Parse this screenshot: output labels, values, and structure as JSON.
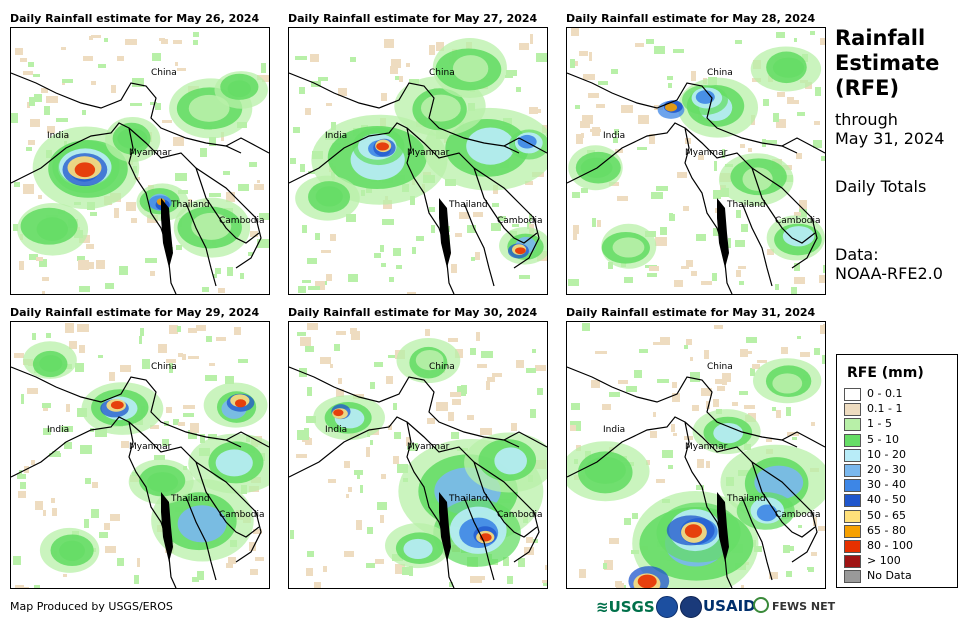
{
  "panels": [
    {
      "title": "Daily Rainfall estimate for May 26, 2024"
    },
    {
      "title": "Daily Rainfall estimate for May 27, 2024"
    },
    {
      "title": "Daily Rainfall estimate for May 28, 2024"
    },
    {
      "title": "Daily Rainfall estimate for May 29, 2024"
    },
    {
      "title": "Daily Rainfall estimate for May 30, 2024"
    },
    {
      "title": "Daily Rainfall estimate for May 31, 2024"
    }
  ],
  "map_labels": {
    "china": "China",
    "india": "India",
    "myanmar": "Myanmar",
    "thailand": "Thailand",
    "cambodia": "Cambodia"
  },
  "side": {
    "title_line1": "Rainfall",
    "title_line2": "Estimate",
    "title_line3": "(RFE)",
    "through": "through",
    "date": "May 31, 2024",
    "totals": "Daily Totals",
    "data_label": "Data:",
    "data_source": "NOAA-RFE2.0"
  },
  "legend": {
    "title": "RFE (mm)",
    "items": [
      {
        "label": "0 - 0.1",
        "color": "#ffffff"
      },
      {
        "label": "0.1 - 1",
        "color": "#eedcc0"
      },
      {
        "label": "1 - 5",
        "color": "#b8f0a8"
      },
      {
        "label": "5 - 10",
        "color": "#66dd66"
      },
      {
        "label": "10 - 20",
        "color": "#b8ecf8"
      },
      {
        "label": "20 - 30",
        "color": "#7ab8ee"
      },
      {
        "label": "30 - 40",
        "color": "#3d86e6"
      },
      {
        "label": "40 - 50",
        "color": "#1f56cc"
      },
      {
        "label": "50 - 65",
        "color": "#ffe07a"
      },
      {
        "label": "65 - 80",
        "color": "#f6a000"
      },
      {
        "label": "80 - 100",
        "color": "#e63000"
      },
      {
        "label": "> 100",
        "color": "#a01414"
      },
      {
        "label": "No Data",
        "color": "#999999"
      }
    ]
  },
  "credit": "Map Produced by USGS/EROS",
  "logos": {
    "usgs": "USGS",
    "usaid": "USAID",
    "fews": "FEWS NET"
  }
}
